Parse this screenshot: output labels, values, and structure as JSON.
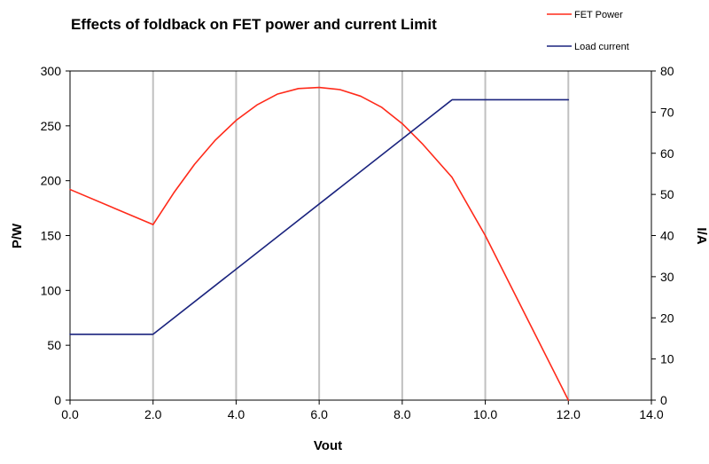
{
  "chart_data": {
    "type": "line",
    "title": "Effects of foldback on FET power and current Limit",
    "xlabel": "Vout",
    "ylabel_left": "P/W",
    "ylabel_right": "I/A",
    "xlim": [
      0,
      14
    ],
    "ylim_left": [
      0,
      300
    ],
    "ylim_right": [
      0,
      80
    ],
    "x_ticks": [
      "0.0",
      "2.0",
      "4.0",
      "6.0",
      "8.0",
      "10.0",
      "12.0",
      "14.0"
    ],
    "y_left_ticks": [
      "0",
      "50",
      "100",
      "150",
      "200",
      "250",
      "300"
    ],
    "y_right_ticks": [
      "0",
      "10",
      "20",
      "30",
      "40",
      "50",
      "60",
      "70",
      "80"
    ],
    "grid": "vertical",
    "legend": "top-right",
    "series": [
      {
        "name": "FET Power",
        "axis": "left",
        "color": "#ff2a1a",
        "x": [
          0,
          2,
          2.5,
          3,
          3.5,
          4,
          4.5,
          5,
          5.5,
          6,
          6.5,
          7,
          7.5,
          8,
          8.5,
          9.2,
          10,
          11,
          12
        ],
        "y": [
          192,
          160,
          189,
          215,
          237,
          255,
          269,
          279,
          284,
          285,
          283,
          277,
          267,
          252,
          233,
          203,
          150,
          75,
          0
        ]
      },
      {
        "name": "Load current",
        "axis": "right",
        "color": "#1a237e",
        "x": [
          0,
          2,
          9.2,
          12
        ],
        "y": [
          16,
          16,
          73,
          73
        ]
      }
    ]
  }
}
